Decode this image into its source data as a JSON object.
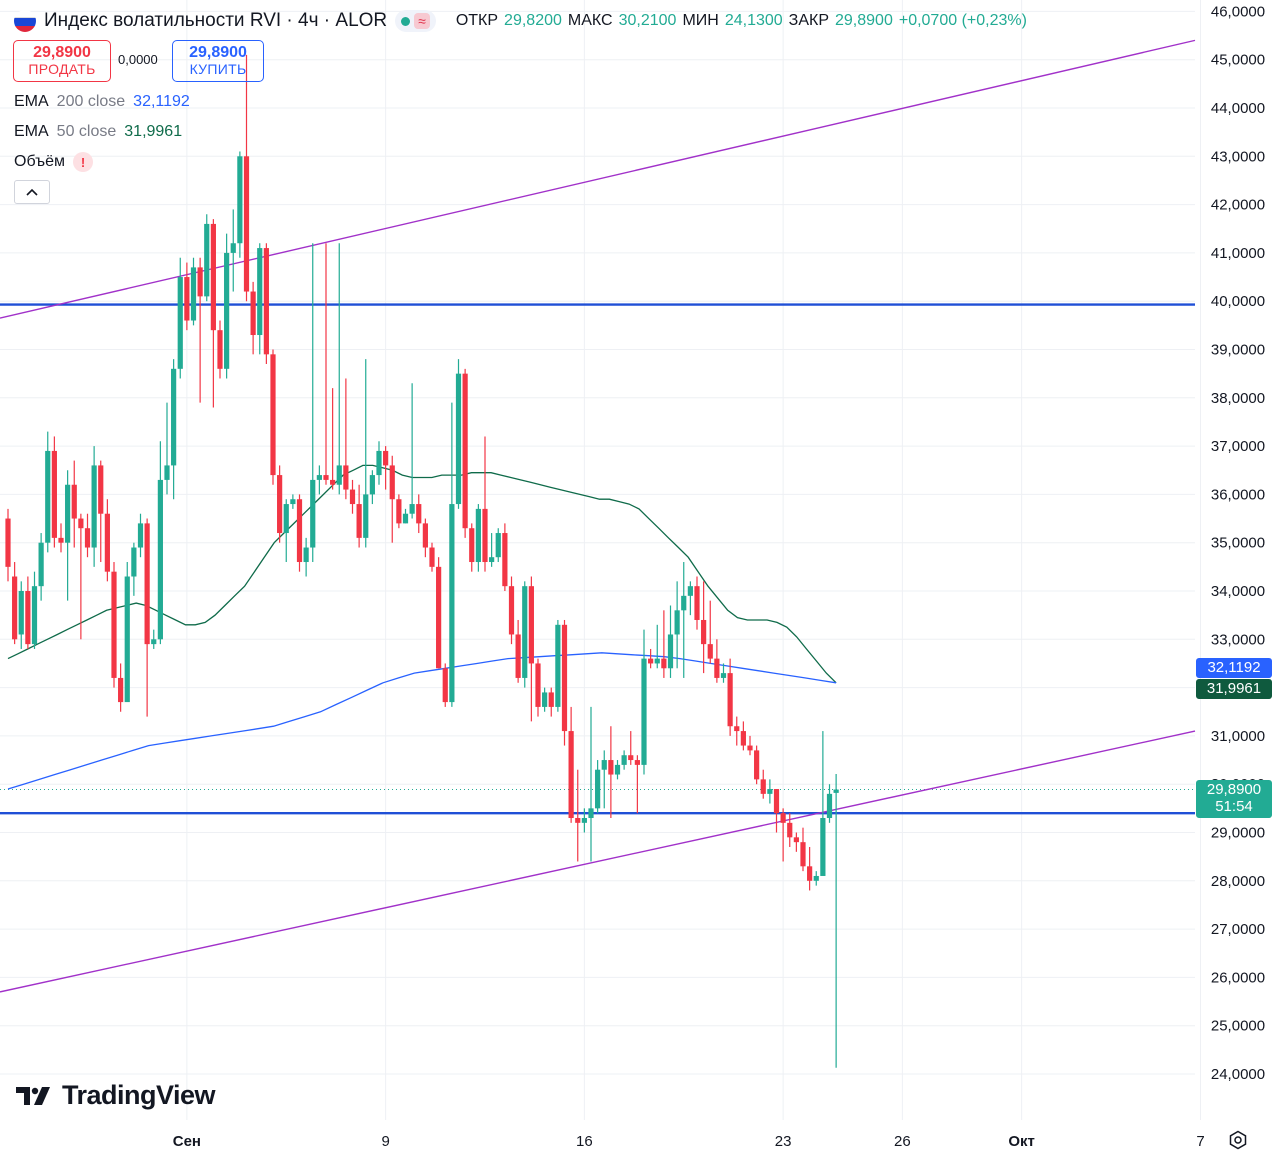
{
  "header": {
    "title": "Индекс волатильности RVI · 4ч · ALOR",
    "status_icon": "market-open-dot",
    "wave_icon": "≈",
    "ohlc": [
      {
        "label": "ОТКР",
        "value": "29,8200"
      },
      {
        "label": "МАКС",
        "value": "30,2100"
      },
      {
        "label": "МИН",
        "value": "24,1300"
      },
      {
        "label": "ЗАКР",
        "value": "29,8900"
      }
    ],
    "change": "+0,0700 (+0,23%)"
  },
  "trade": {
    "sell_price": "29,8900",
    "sell_label": "ПРОДАТЬ",
    "spread": "0,0000",
    "buy_price": "29,8900",
    "buy_label": "КУПИТЬ"
  },
  "indicators": [
    {
      "name": "EMA",
      "params": "200 close",
      "value": "32,1192",
      "color": "#2962ff"
    },
    {
      "name": "EMA",
      "params": "50 close",
      "value": "31,9961",
      "color": "#0f6b4a"
    },
    {
      "name": "Объём",
      "params": "",
      "value": "!",
      "color": "#f23645"
    }
  ],
  "collapse_icon": "chevron-up-icon",
  "logo_text": "TradingView",
  "badges": {
    "ema200": "32,1192",
    "ema50": "31,9961",
    "last_price": "29,8900",
    "countdown": "51:54"
  },
  "colors": {
    "up": "#22ab94",
    "down": "#f23645",
    "ema200": "#2962ff",
    "ema50": "#0f6b4a",
    "trend": "#a131c9",
    "level": "#1f4fd6"
  },
  "chart_data": {
    "type": "candlestick",
    "ylim": [
      23.5,
      46.2
    ],
    "y_ticks": [
      "24,0000",
      "25,0000",
      "26,0000",
      "27,0000",
      "28,0000",
      "29,0000",
      "30,0000",
      "31,0000",
      "32,0000",
      "33,0000",
      "34,0000",
      "35,0000",
      "36,0000",
      "37,0000",
      "38,0000",
      "39,0000",
      "40,0000",
      "41,0000",
      "42,0000",
      "43,0000",
      "44,0000",
      "45,0000",
      "46,0000"
    ],
    "y_tick_values": [
      24,
      25,
      26,
      27,
      28,
      29,
      30,
      31,
      32,
      33,
      34,
      35,
      36,
      37,
      38,
      39,
      40,
      41,
      42,
      43,
      44,
      45,
      46
    ],
    "x_labels": [
      "Сен",
      "9",
      "16",
      "23",
      "26",
      "Окт",
      "7"
    ],
    "x_label_index": [
      27,
      57,
      87,
      117,
      135,
      153,
      180
    ],
    "candles": [
      [
        35.5,
        34.5,
        35.7,
        34.2
      ],
      [
        34.3,
        33.0,
        34.6,
        32.9
      ],
      [
        33.1,
        34.0,
        34.2,
        32.8
      ],
      [
        34.0,
        32.9,
        34.3,
        32.8
      ],
      [
        32.9,
        34.1,
        34.4,
        32.8
      ],
      [
        34.1,
        35.0,
        35.2,
        33.8
      ],
      [
        35.0,
        36.9,
        37.3,
        34.8
      ],
      [
        36.9,
        35.1,
        37.2,
        34.9
      ],
      [
        35.1,
        35.0,
        35.4,
        34.8
      ],
      [
        35.0,
        36.2,
        36.5,
        33.8
      ],
      [
        36.2,
        35.5,
        36.7,
        34.9
      ],
      [
        35.5,
        35.3,
        35.6,
        33.0
      ],
      [
        35.3,
        34.9,
        35.6,
        34.7
      ],
      [
        34.9,
        36.6,
        37.0,
        34.5
      ],
      [
        36.6,
        35.6,
        36.7,
        34.6
      ],
      [
        35.6,
        34.4,
        35.9,
        34.2
      ],
      [
        34.4,
        32.2,
        34.6,
        32.0
      ],
      [
        32.2,
        31.7,
        32.5,
        31.5
      ],
      [
        31.7,
        34.3,
        34.6,
        32.4
      ],
      [
        34.3,
        34.9,
        35.0,
        33.9
      ],
      [
        34.9,
        35.4,
        35.6,
        34.7
      ],
      [
        35.4,
        32.9,
        35.5,
        31.4
      ],
      [
        32.9,
        33.0,
        33.2,
        32.8
      ],
      [
        33.0,
        36.3,
        37.1,
        32.9
      ],
      [
        36.3,
        36.6,
        37.9,
        36.0
      ],
      [
        36.6,
        38.6,
        38.8,
        35.9
      ],
      [
        38.6,
        40.5,
        40.9,
        38.4
      ],
      [
        40.5,
        39.6,
        40.8,
        39.4
      ],
      [
        39.6,
        40.7,
        40.9,
        39.5
      ],
      [
        40.7,
        40.1,
        40.9,
        37.9
      ],
      [
        40.1,
        41.6,
        41.8,
        40.0
      ],
      [
        41.6,
        39.4,
        41.7,
        37.8
      ],
      [
        39.4,
        38.6,
        39.6,
        38.4
      ],
      [
        38.6,
        41.0,
        41.4,
        38.4
      ],
      [
        41.0,
        41.2,
        41.9,
        40.2
      ],
      [
        41.2,
        43.0,
        43.1,
        40.9
      ],
      [
        43.0,
        40.2,
        45.1,
        40.0
      ],
      [
        40.2,
        39.3,
        40.4,
        38.9
      ],
      [
        39.3,
        41.1,
        41.2,
        38.9
      ],
      [
        41.1,
        38.9,
        41.2,
        38.7
      ],
      [
        38.9,
        36.4,
        39.0,
        36.2
      ],
      [
        36.4,
        35.2,
        36.6,
        35.0
      ],
      [
        35.2,
        35.8,
        35.9,
        34.6
      ],
      [
        35.8,
        35.9,
        36.0,
        35.7
      ],
      [
        35.9,
        34.6,
        36.0,
        34.4
      ],
      [
        34.6,
        34.9,
        35.1,
        34.3
      ],
      [
        34.9,
        36.3,
        41.2,
        34.6
      ],
      [
        36.3,
        36.4,
        36.6,
        36.0
      ],
      [
        36.4,
        36.3,
        41.2,
        36.2
      ],
      [
        36.3,
        36.2,
        38.2,
        36.1
      ],
      [
        36.2,
        36.6,
        41.2,
        36.0
      ],
      [
        36.6,
        36.1,
        38.4,
        35.9
      ],
      [
        36.1,
        35.8,
        36.3,
        35.6
      ],
      [
        35.8,
        35.1,
        36.2,
        34.9
      ],
      [
        35.1,
        36.0,
        38.8,
        34.9
      ],
      [
        36.0,
        36.4,
        36.5,
        35.8
      ],
      [
        36.4,
        36.9,
        37.1,
        36.2
      ],
      [
        36.9,
        36.6,
        37.0,
        36.1
      ],
      [
        36.6,
        35.9,
        36.8,
        35.0
      ],
      [
        35.9,
        35.4,
        36.0,
        35.3
      ],
      [
        35.4,
        35.6,
        35.7,
        35.4
      ],
      [
        35.6,
        35.8,
        38.3,
        35.5
      ],
      [
        35.8,
        35.4,
        36.0,
        35.2
      ],
      [
        35.4,
        34.9,
        35.5,
        34.7
      ],
      [
        34.9,
        34.5,
        35.0,
        34.4
      ],
      [
        34.5,
        32.4,
        34.7,
        32.4
      ],
      [
        32.4,
        31.7,
        32.5,
        31.6
      ],
      [
        31.7,
        35.8,
        37.9,
        31.6
      ],
      [
        35.8,
        38.5,
        38.8,
        35.7
      ],
      [
        38.5,
        35.3,
        38.6,
        35.1
      ],
      [
        35.3,
        34.6,
        35.4,
        34.4
      ],
      [
        34.6,
        35.7,
        35.8,
        34.4
      ],
      [
        35.7,
        34.6,
        37.2,
        34.4
      ],
      [
        34.6,
        34.7,
        35.2,
        34.5
      ],
      [
        34.7,
        35.2,
        35.3,
        34.6
      ],
      [
        35.2,
        34.1,
        35.4,
        34.0
      ],
      [
        34.1,
        33.1,
        34.3,
        32.9
      ],
      [
        33.1,
        32.2,
        33.4,
        32.1
      ],
      [
        32.2,
        34.1,
        34.2,
        32.0
      ],
      [
        34.1,
        32.5,
        34.3,
        31.3
      ],
      [
        32.5,
        31.6,
        32.6,
        31.4
      ],
      [
        31.6,
        31.9,
        32.0,
        31.5
      ],
      [
        31.9,
        31.6,
        32.0,
        31.4
      ],
      [
        31.6,
        33.3,
        33.4,
        31.5
      ],
      [
        33.3,
        31.1,
        33.4,
        30.8
      ],
      [
        31.1,
        29.3,
        31.6,
        29.2
      ],
      [
        29.3,
        29.2,
        30.3,
        28.4
      ],
      [
        29.2,
        29.3,
        29.5,
        29.0
      ],
      [
        29.3,
        29.5,
        31.6,
        28.4
      ],
      [
        29.5,
        30.3,
        30.5,
        29.4
      ],
      [
        30.3,
        30.5,
        30.7,
        29.5
      ],
      [
        30.5,
        30.2,
        31.2,
        29.3
      ],
      [
        30.2,
        30.4,
        30.5,
        30.1
      ],
      [
        30.4,
        30.6,
        30.7,
        30.3
      ],
      [
        30.6,
        30.5,
        31.1,
        30.4
      ],
      [
        30.5,
        30.4,
        30.6,
        29.4
      ],
      [
        30.4,
        32.6,
        33.2,
        30.2
      ],
      [
        32.6,
        32.5,
        32.8,
        32.4
      ],
      [
        32.5,
        32.6,
        33.3,
        32.4
      ],
      [
        32.6,
        32.4,
        33.6,
        32.2
      ],
      [
        32.4,
        33.1,
        33.7,
        32.2
      ],
      [
        33.1,
        33.6,
        34.2,
        32.4
      ],
      [
        33.6,
        33.9,
        34.6,
        32.2
      ],
      [
        33.9,
        34.1,
        34.2,
        33.5
      ],
      [
        34.1,
        33.4,
        34.3,
        33.2
      ],
      [
        33.4,
        32.9,
        34.2,
        32.3
      ],
      [
        32.9,
        32.6,
        33.8,
        32.5
      ],
      [
        32.6,
        32.2,
        33.0,
        32.1
      ],
      [
        32.2,
        32.3,
        32.5,
        32.1
      ],
      [
        32.3,
        31.2,
        32.6,
        31.0
      ],
      [
        31.2,
        31.1,
        31.4,
        30.8
      ],
      [
        31.1,
        30.8,
        31.3,
        30.7
      ],
      [
        30.8,
        30.7,
        31.0,
        30.6
      ],
      [
        30.7,
        30.1,
        30.8,
        30.0
      ],
      [
        30.1,
        29.8,
        30.3,
        29.7
      ],
      [
        29.8,
        29.9,
        30.1,
        29.6
      ],
      [
        29.9,
        29.4,
        29.4,
        29.0
      ],
      [
        29.4,
        29.2,
        29.5,
        28.4
      ],
      [
        29.2,
        28.9,
        29.4,
        28.7
      ],
      [
        28.9,
        28.8,
        29.0,
        28.6
      ],
      [
        28.8,
        28.3,
        29.1,
        28.2
      ],
      [
        28.3,
        28.0,
        28.7,
        27.8
      ],
      [
        28.0,
        28.1,
        28.2,
        27.9
      ],
      [
        28.1,
        29.3,
        31.1,
        29.2
      ],
      [
        29.3,
        29.8,
        30.0,
        29.2
      ],
      [
        29.82,
        29.89,
        30.21,
        24.13
      ]
    ],
    "ema50": [
      [
        32.6,
        32.7,
        32.8,
        32.9,
        33.0,
        33.1,
        33.2,
        33.3,
        33.4,
        33.5,
        33.6,
        33.65,
        33.7,
        33.75,
        33.7,
        33.6,
        33.5,
        33.4,
        33.3,
        33.3,
        33.35,
        33.5,
        33.7,
        33.9,
        34.1,
        34.4,
        34.7,
        35.0,
        35.2,
        35.4,
        35.6,
        35.8,
        36.0,
        36.2,
        36.4,
        36.5,
        36.6,
        36.6,
        36.55,
        36.5,
        36.4,
        36.35,
        36.35,
        36.35,
        36.4,
        36.4,
        36.4,
        36.45,
        36.45,
        36.45,
        36.4,
        36.35,
        36.3,
        36.25,
        36.2,
        36.15,
        36.1,
        36.05,
        36.0,
        35.95,
        35.9,
        35.9,
        35.85,
        35.8,
        35.7,
        35.5,
        35.3,
        35.1,
        34.9,
        34.7,
        34.4,
        34.1,
        33.85,
        33.6,
        33.45,
        33.4,
        33.4,
        33.4,
        33.35,
        33.25,
        33.05,
        32.8,
        32.55,
        32.3,
        32.1
      ]
    ],
    "ema200": [
      29.9,
      30.0,
      30.1,
      30.2,
      30.3,
      30.4,
      30.5,
      30.6,
      30.7,
      30.8,
      30.85,
      30.9,
      30.95,
      31.0,
      31.05,
      31.1,
      31.15,
      31.2,
      31.3,
      31.4,
      31.5,
      31.65,
      31.8,
      31.95,
      32.1,
      32.2,
      32.3,
      32.35,
      32.4,
      32.45,
      32.5,
      32.55,
      32.6,
      32.62,
      32.64,
      32.66,
      32.68,
      32.7,
      32.72,
      32.7,
      32.68,
      32.66,
      32.64,
      32.6,
      32.55,
      32.5,
      32.45,
      32.4,
      32.35,
      32.3,
      32.25,
      32.2,
      32.15,
      32.1
    ],
    "horizontal_levels": [
      39.93,
      29.4
    ],
    "last_price": 29.89
  }
}
